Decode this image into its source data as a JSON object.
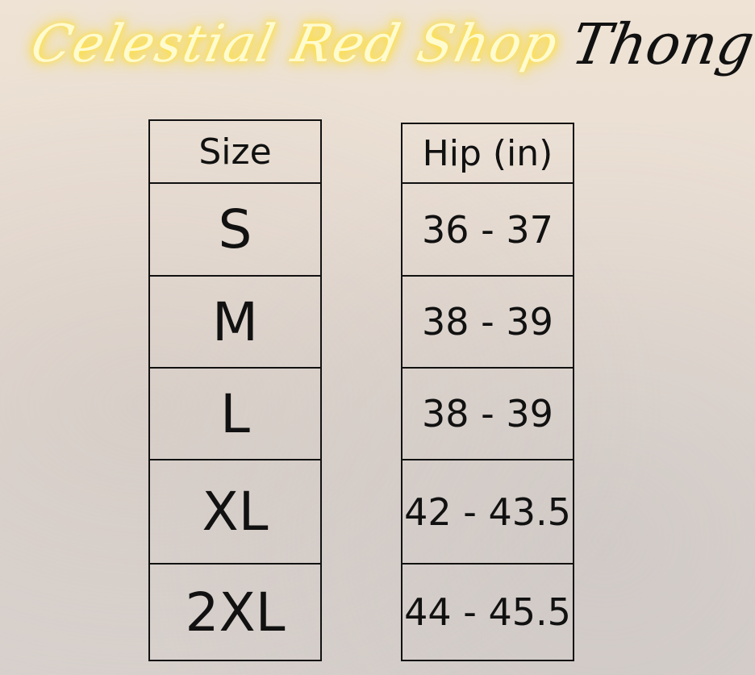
{
  "brand": "Celestial Red Shop",
  "product": "Thong",
  "table": {
    "headers": [
      "Size",
      "Hip (in)"
    ],
    "rows": [
      {
        "size": "S",
        "hip": "36 - 37"
      },
      {
        "size": "M",
        "hip": "38 - 39"
      },
      {
        "size": "L",
        "hip": "38 - 39"
      },
      {
        "size": "XL",
        "hip": "42 - 43.5"
      },
      {
        "size": "2XL",
        "hip": "44 - 45.5"
      }
    ]
  },
  "colors": {
    "brand_neon": "#ffe34a",
    "text": "#111111"
  }
}
